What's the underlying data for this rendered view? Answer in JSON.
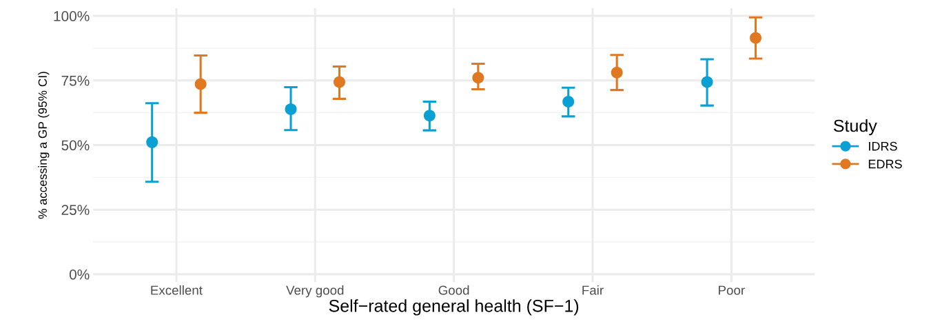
{
  "chart_data": {
    "type": "scatter",
    "xlabel": "Self−rated general health (SF−1)",
    "ylabel": "% accessing a GP (95% CI)",
    "legend_title": "Study",
    "categories": [
      "Excellent",
      "Very good",
      "Good",
      "Fair",
      "Poor"
    ],
    "series": [
      {
        "name": "IDRS",
        "color": "#0aa0d4",
        "values": [
          51.1,
          63.9,
          61.4,
          66.8,
          74.4
        ],
        "errors": [
          [
            35.8,
            66.2
          ],
          [
            55.8,
            72.4
          ],
          [
            55.7,
            66.8
          ],
          [
            61.1,
            72.2
          ],
          [
            65.3,
            83.2
          ]
        ]
      },
      {
        "name": "EDRS",
        "color": "#df7820",
        "values": [
          73.6,
          74.4,
          76.1,
          78.1,
          91.5
        ],
        "errors": [
          [
            62.5,
            84.7
          ],
          [
            67.9,
            80.4
          ],
          [
            71.6,
            81.5
          ],
          [
            71.3,
            84.9
          ],
          [
            83.5,
            99.4
          ]
        ]
      }
    ],
    "ylim": [
      -3,
      103
    ],
    "yticks": [
      {
        "value": 0,
        "label": "0%"
      },
      {
        "value": 25,
        "label": "25%"
      },
      {
        "value": 50,
        "label": "50%"
      },
      {
        "value": 75,
        "label": "75%"
      },
      {
        "value": 100,
        "label": "100%"
      }
    ],
    "grid": true,
    "legend": "right",
    "marker": "circle"
  }
}
